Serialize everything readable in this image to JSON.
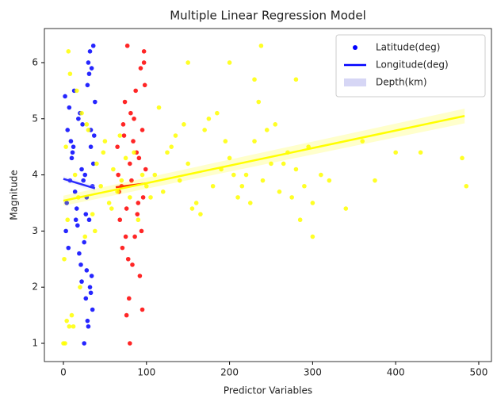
{
  "chart_data": {
    "type": "scatter",
    "title": "Multiple Linear Regression Model",
    "x_label": "Predictor Variables",
    "y_label": "Magnitude",
    "xlim": [
      -22.9,
      515.3
    ],
    "ylim": [
      0.675,
      6.607
    ],
    "xticks": [
      0,
      100,
      200,
      300,
      400,
      500
    ],
    "yticks": [
      1,
      2,
      3,
      4,
      5,
      6
    ],
    "legend": "upper right",
    "series": [
      {
        "name": "Latitude(deg)",
        "kind": "scatter",
        "color": "#0000ff",
        "x": [
          2,
          5,
          8,
          12,
          15,
          18,
          22,
          25,
          28,
          31,
          34,
          37,
          3,
          7,
          11,
          14,
          19,
          23,
          27,
          30,
          33,
          36,
          4,
          9,
          13,
          17,
          21,
          26,
          29,
          32,
          35,
          38,
          6,
          10,
          16,
          20,
          24,
          28,
          33,
          36,
          30,
          35,
          25,
          27,
          32,
          34,
          22,
          29,
          31,
          33
        ],
        "y": [
          5.4,
          4.8,
          3.9,
          4.5,
          3.2,
          5.0,
          4.1,
          2.8,
          3.6,
          5.8,
          2.2,
          4.7,
          3.0,
          5.2,
          4.4,
          3.7,
          2.6,
          4.9,
          3.3,
          6.0,
          1.9,
          4.2,
          3.5,
          4.6,
          5.5,
          3.1,
          2.4,
          4.0,
          5.6,
          2.0,
          3.8,
          5.3,
          2.7,
          4.3,
          3.4,
          5.1,
          3.9,
          2.3,
          4.5,
          6.3,
          1.3,
          1.6,
          1.0,
          1.8,
          6.2,
          5.9,
          2.1,
          1.4,
          3.2,
          4.8
        ]
      },
      {
        "name": "Longitude(deg)",
        "kind": "line",
        "color": "#0000ff",
        "x": [
          0,
          38
        ],
        "y": [
          3.93,
          3.76
        ]
      },
      {
        "name": "Depth(km)",
        "kind": "band",
        "color": "#d6d6f5",
        "x": [
          0,
          38
        ],
        "lower": [
          3.88,
          3.7
        ],
        "upper": [
          3.98,
          3.82
        ]
      },
      {
        "kind": "scatter",
        "color": "#ff0000",
        "x": [
          65,
          70,
          75,
          80,
          85,
          90,
          95,
          98,
          68,
          72,
          78,
          82,
          88,
          92,
          96,
          66,
          74,
          79,
          84,
          89,
          93,
          99,
          71,
          76,
          81,
          86,
          91,
          97,
          67,
          73,
          77,
          83,
          87,
          94,
          80,
          76,
          95,
          97
        ],
        "y": [
          4.5,
          3.8,
          2.9,
          4.2,
          5.0,
          3.5,
          4.8,
          5.6,
          3.2,
          4.9,
          2.5,
          3.9,
          4.4,
          2.2,
          3.6,
          4.0,
          5.3,
          1.8,
          4.6,
          3.3,
          5.9,
          4.1,
          2.7,
          3.4,
          5.1,
          2.9,
          4.3,
          6.2,
          3.7,
          4.7,
          6.3,
          2.4,
          5.5,
          3.0,
          1.0,
          1.5,
          1.6,
          6.0
        ]
      },
      {
        "kind": "line",
        "color": "#ff0000",
        "x": [
          63,
          100
        ],
        "y": [
          3.78,
          3.85
        ]
      },
      {
        "kind": "scatter",
        "color": "#ffff00",
        "x": [
          1,
          3,
          5,
          8,
          10,
          14,
          18,
          22,
          26,
          30,
          35,
          40,
          45,
          50,
          55,
          60,
          65,
          70,
          75,
          80,
          85,
          90,
          95,
          100,
          2,
          6,
          12,
          16,
          20,
          28,
          38,
          48,
          58,
          68,
          110,
          120,
          130,
          140,
          150,
          160,
          170,
          180,
          190,
          200,
          210,
          220,
          230,
          240,
          250,
          260,
          270,
          280,
          290,
          300,
          310,
          320,
          115,
          135,
          155,
          175,
          195,
          215,
          235,
          255,
          275,
          295,
          105,
          125,
          145,
          165,
          185,
          205,
          225,
          245,
          265,
          285,
          340,
          360,
          375,
          400,
          430,
          480,
          485,
          4,
          7,
          0,
          150,
          200,
          238,
          230,
          280,
          300
        ],
        "y": [
          2.5,
          4.5,
          3.2,
          5.8,
          1.5,
          4.0,
          3.6,
          5.1,
          2.9,
          4.8,
          3.3,
          4.2,
          3.8,
          4.6,
          3.5,
          4.1,
          3.7,
          3.9,
          4.3,
          3.6,
          4.4,
          3.2,
          4.0,
          3.8,
          1.0,
          6.2,
          1.3,
          5.5,
          2.0,
          4.9,
          3.0,
          4.4,
          3.4,
          4.7,
          4.0,
          3.7,
          4.5,
          3.9,
          4.2,
          3.5,
          4.8,
          3.8,
          4.1,
          4.3,
          3.6,
          4.0,
          4.6,
          3.9,
          4.2,
          3.7,
          4.4,
          4.1,
          3.8,
          3.5,
          4.0,
          3.9,
          5.2,
          4.7,
          3.4,
          5.0,
          4.6,
          3.8,
          5.3,
          4.9,
          3.6,
          4.5,
          3.6,
          4.4,
          4.9,
          3.3,
          5.1,
          4.0,
          3.5,
          4.8,
          4.2,
          3.2,
          3.4,
          4.6,
          3.9,
          4.4,
          4.4,
          4.3,
          3.8,
          1.4,
          1.3,
          1.0,
          6.0,
          6.0,
          6.3,
          5.7,
          5.7,
          2.9
        ]
      },
      {
        "kind": "line",
        "color": "#ffff00",
        "x": [
          0,
          483
        ],
        "y": [
          3.54,
          5.05
        ]
      },
      {
        "kind": "band",
        "color": "#ffff00",
        "x": [
          0,
          483
        ],
        "lower": [
          3.45,
          4.92
        ],
        "upper": [
          3.63,
          5.18
        ]
      }
    ]
  }
}
